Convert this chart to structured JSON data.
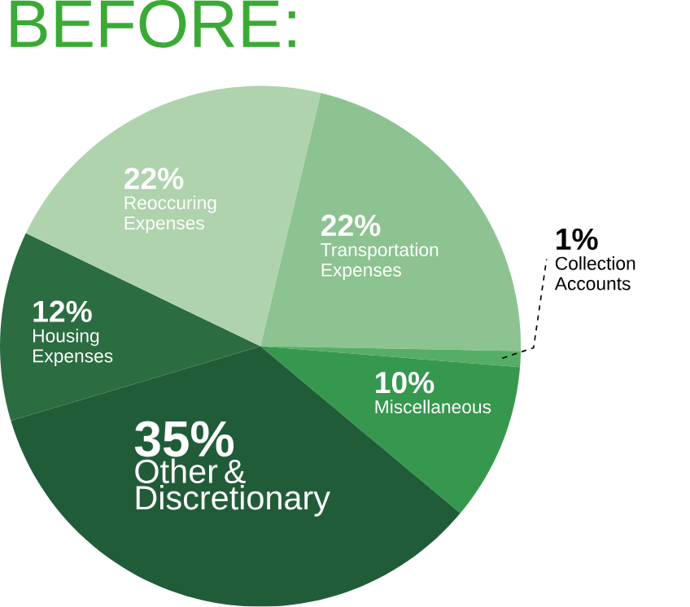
{
  "chart_data": {
    "type": "pie",
    "title": "BEFORE:",
    "categories": [
      "Transportation Expenses",
      "Collection Accounts",
      "Miscellaneous",
      "Other & Discretionary",
      "Housing Expenses",
      "Reoccuring Expenses"
    ],
    "values": [
      22,
      1,
      10,
      35,
      12,
      22
    ],
    "value_labels": [
      "22%",
      "1%",
      "10%",
      "35%",
      "12%",
      "22%"
    ],
    "colors": [
      "#8cc391",
      "#56ad66",
      "#36984f",
      "#215c38",
      "#2c6c41",
      "#aed3ad"
    ],
    "data_labels": true
  }
}
